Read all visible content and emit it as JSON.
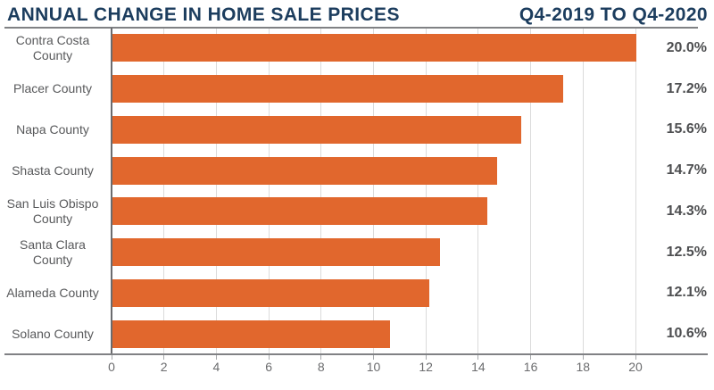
{
  "header": {
    "title": "ANNUAL CHANGE IN HOME SALE PRICES",
    "period": "Q4-2019 TO Q4-2020"
  },
  "colors": {
    "bar_orange": "#E1672D",
    "title_navy": "#1C3D5E",
    "category_label_gray": "#58595B",
    "value_label_gray": "#4D4E50",
    "axis_line_gray": "#6A6B6E",
    "frame_line_gray": "#808184",
    "gridline_gray": "#DBDBDB"
  },
  "chart_data": {
    "type": "bar",
    "orientation": "horizontal",
    "title": "ANNUAL CHANGE IN HOME SALE PRICES",
    "subtitle": "Q4-2019 TO Q4-2020",
    "categories": [
      "Contra Costa County",
      "Placer County",
      "Napa County",
      "Shasta County",
      "San Luis Obispo County",
      "Santa Clara County",
      "Alameda County",
      "Solano County"
    ],
    "values": [
      20.0,
      17.2,
      15.6,
      14.7,
      14.3,
      12.5,
      12.1,
      10.6
    ],
    "value_labels": [
      "20.0%",
      "17.2%",
      "15.6%",
      "14.7%",
      "14.3%",
      "12.5%",
      "12.1%",
      "10.6%"
    ],
    "xlabel": "",
    "ylabel": "",
    "xlim": [
      0,
      20
    ],
    "x_ticks": [
      0,
      2,
      4,
      6,
      8,
      10,
      12,
      14,
      16,
      18,
      20
    ],
    "x_tick_labels": [
      "0",
      "2",
      "4",
      "6",
      "8",
      "10",
      "12",
      "14",
      "16",
      "18",
      "20"
    ],
    "grid": true,
    "unit": "percent",
    "legend": "none"
  }
}
